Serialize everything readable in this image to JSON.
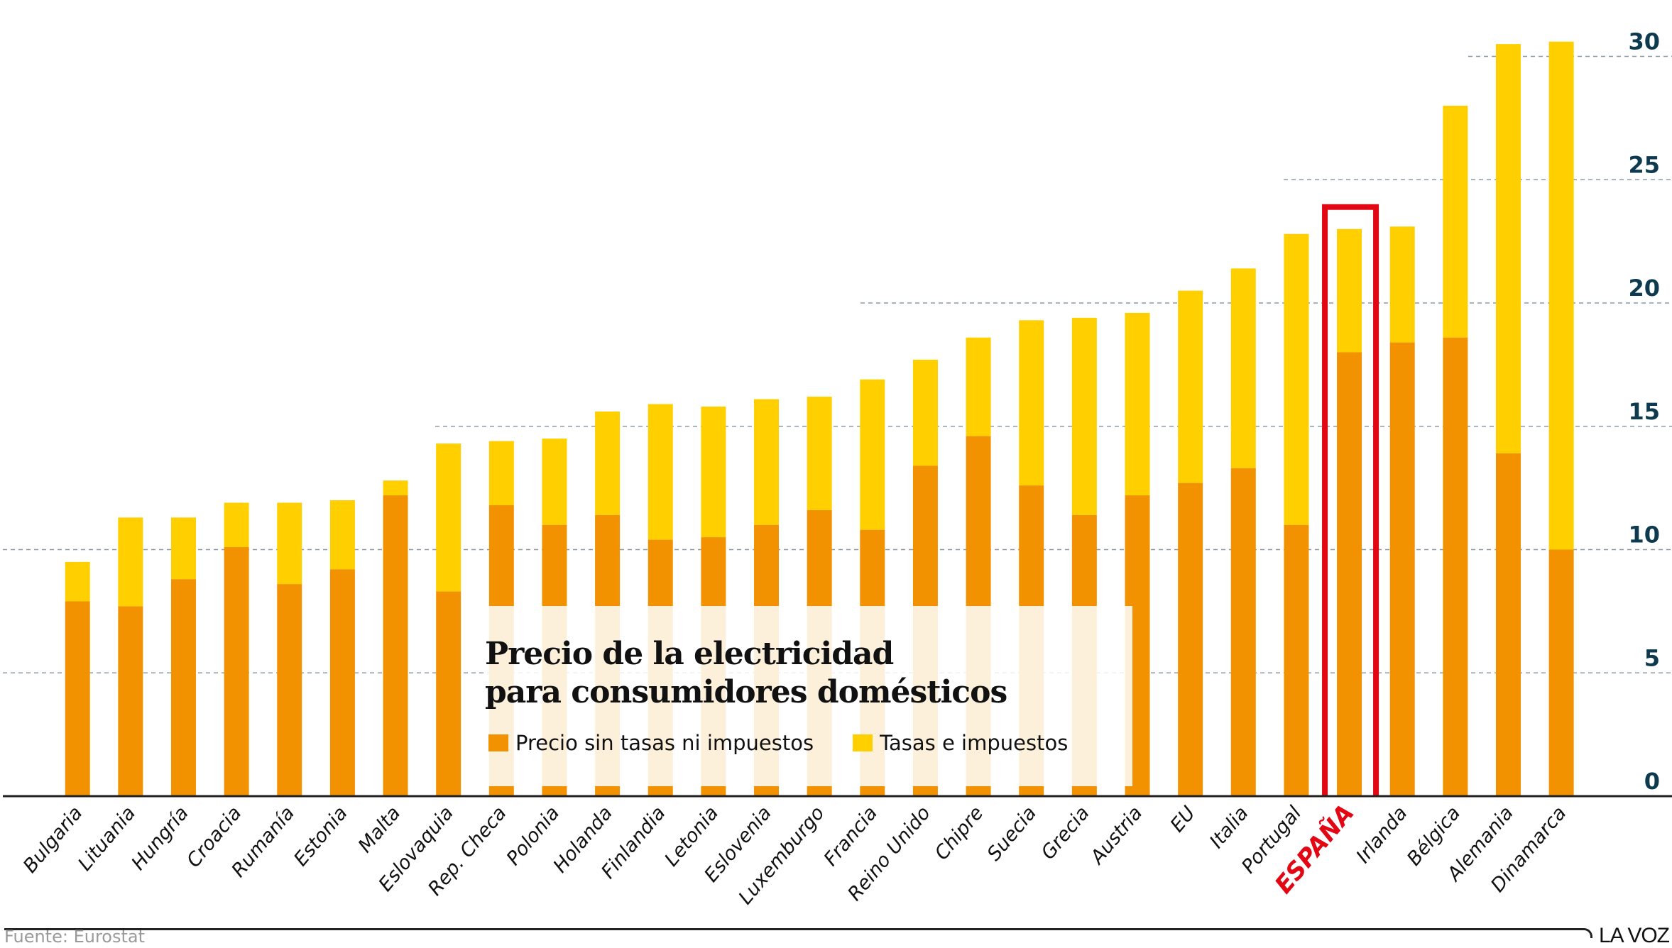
{
  "chart_data": {
    "type": "bar",
    "stacked": true,
    "title": "Precio de la electricidad para consumidores domésticos",
    "title_lines": [
      "Precio de la electricidad",
      "para consumidores domésticos"
    ],
    "xlabel": "",
    "ylabel": "",
    "ylim": [
      0,
      30
    ],
    "yticks": [
      0,
      5,
      10,
      15,
      20,
      25,
      30
    ],
    "grid": true,
    "legend_position": "bottom-center (inside plot)",
    "highlight_category": "ESPAÑA",
    "categories": [
      "Bulgaria",
      "Lituania",
      "Hungría",
      "Croacia",
      "Rumanía",
      "Estonia",
      "Malta",
      "Eslovaquia",
      "Rep. Checa",
      "Polonia",
      "Holanda",
      "Finlandia",
      "Letonia",
      "Eslovenia",
      "Luxemburgo",
      "Francia",
      "Reino Unido",
      "Chipre",
      "Suecia",
      "Grecia",
      "Austria",
      "EU",
      "Italia",
      "Portugal",
      "ESPAÑA",
      "Irlanda",
      "Bélgica",
      "Alemania",
      "Dinamarca"
    ],
    "series": [
      {
        "name": "Precio sin tasas ni impuestos",
        "color": "#f29200",
        "values": [
          7.9,
          7.7,
          8.8,
          10.1,
          8.6,
          9.2,
          12.2,
          8.3,
          11.8,
          11.0,
          11.4,
          10.4,
          10.5,
          11.0,
          11.6,
          10.8,
          13.4,
          14.6,
          12.6,
          11.4,
          12.2,
          12.7,
          13.3,
          11.0,
          18.0,
          18.4,
          18.6,
          13.9,
          10.0
        ]
      },
      {
        "name": "Tasas e impuestos",
        "color": "#ffcf00",
        "values": [
          1.6,
          3.6,
          2.5,
          1.8,
          3.3,
          2.8,
          0.6,
          6.0,
          2.6,
          3.5,
          4.2,
          5.5,
          5.3,
          5.1,
          4.6,
          6.1,
          4.3,
          4.0,
          6.7,
          8.0,
          7.4,
          7.8,
          8.1,
          11.8,
          5.0,
          4.7,
          9.4,
          16.6,
          20.6
        ]
      }
    ],
    "totals": [
      9.5,
      11.3,
      11.3,
      11.9,
      11.9,
      12.0,
      12.8,
      14.3,
      14.4,
      14.5,
      15.6,
      15.9,
      15.8,
      16.1,
      16.2,
      16.9,
      17.7,
      18.6,
      19.3,
      19.4,
      19.6,
      20.5,
      21.4,
      22.8,
      23.0,
      23.1,
      28.0,
      30.5,
      30.6
    ]
  },
  "legend": {
    "items": [
      {
        "label": "Precio sin tasas ni impuestos",
        "color": "#f29200"
      },
      {
        "label": "Tasas e impuestos",
        "color": "#ffcf00"
      }
    ]
  },
  "colors": {
    "highlight": "#e30613",
    "tick_text": "#0d3a4f",
    "grid": "#8a9aa8"
  },
  "footer": {
    "source": "Fuente: Eurostat",
    "brand": "LA VOZ"
  }
}
